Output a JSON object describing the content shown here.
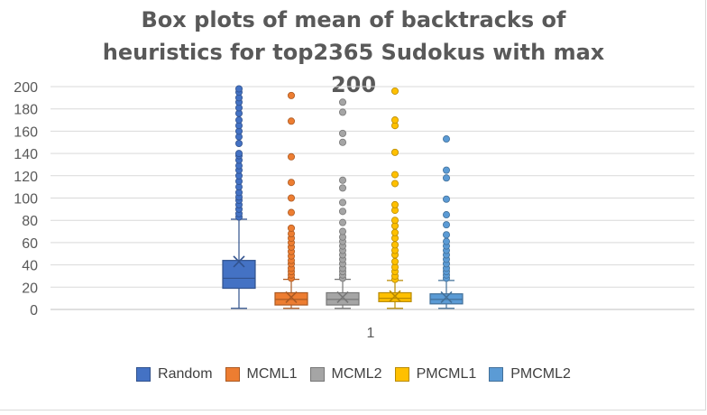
{
  "chart_data": {
    "type": "box",
    "title": "Box plots of mean of backtracks of heuristics for top2365 Sudokus with max 200",
    "categories": [
      "1"
    ],
    "ylim": [
      0,
      200
    ],
    "yticks": [
      0,
      20,
      40,
      60,
      80,
      100,
      120,
      140,
      160,
      180,
      200
    ],
    "grid": true,
    "legend_position": "bottom",
    "series": [
      {
        "name": "Random",
        "color": "#4472c4",
        "min": 1,
        "q1": 19,
        "median": 28,
        "q3": 44,
        "max": 81,
        "mean": 43,
        "outliers": [
          83,
          86,
          90,
          94,
          98,
          101,
          105,
          110,
          115,
          120,
          125,
          129,
          134,
          138,
          140,
          149,
          155,
          160,
          165,
          170,
          176,
          181,
          186,
          190,
          195,
          198
        ]
      },
      {
        "name": "MCML1",
        "color": "#ed7d31",
        "min": 1,
        "q1": 4,
        "median": 9,
        "q3": 15,
        "max": 27,
        "mean": 11,
        "outliers": [
          28,
          31,
          34,
          37,
          41,
          44,
          48,
          52,
          56,
          60,
          64,
          68,
          73,
          87,
          100,
          114,
          137,
          169,
          192
        ]
      },
      {
        "name": "MCML2",
        "color": "#a5a5a5",
        "min": 1,
        "q1": 4,
        "median": 9,
        "q3": 15,
        "max": 27,
        "mean": 11,
        "outliers": [
          28,
          31,
          34,
          37,
          41,
          45,
          49,
          53,
          57,
          61,
          65,
          70,
          78,
          88,
          96,
          109,
          116,
          150,
          158,
          177,
          186
        ]
      },
      {
        "name": "PMCML1",
        "color": "#ffc000",
        "min": 1,
        "q1": 7,
        "median": 10,
        "q3": 15,
        "max": 26,
        "mean": 12,
        "outliers": [
          27,
          30,
          34,
          38,
          43,
          49,
          53,
          58,
          64,
          69,
          75,
          80,
          89,
          94,
          113,
          121,
          141,
          165,
          170,
          196
        ]
      },
      {
        "name": "PMCML2",
        "color": "#5b9bd5",
        "min": 1,
        "q1": 5,
        "median": 9,
        "q3": 14,
        "max": 26,
        "mean": 11,
        "outliers": [
          28,
          31,
          34,
          37,
          41,
          45,
          49,
          53,
          57,
          61,
          67,
          76,
          85,
          99,
          118,
          125,
          153
        ]
      }
    ]
  }
}
